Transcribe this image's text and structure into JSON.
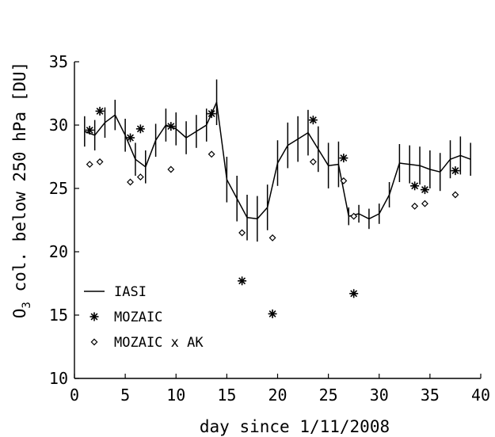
{
  "chart_data": {
    "type": "line",
    "xlabel": "day since 1/11/2008",
    "ylabel": "O3 col. below 250 hPa [DU]",
    "ylabel_parts": {
      "symbol": "O",
      "subscript": "3",
      "rest": " col. below 250 hPa [DU]"
    },
    "xlim": [
      0,
      40
    ],
    "ylim": [
      10,
      35
    ],
    "xticks": [
      "0",
      "5",
      "10",
      "15",
      "20",
      "25",
      "30",
      "35",
      "40"
    ],
    "yticks": [
      "10",
      "15",
      "20",
      "25",
      "30",
      "35"
    ],
    "grid": false,
    "legend_position": "lower-left",
    "series": [
      {
        "name": "IASI",
        "style": "line-with-errorbars",
        "color": "#000000",
        "x": [
          1,
          2,
          3,
          4,
          5,
          6,
          7,
          8,
          9,
          10,
          11,
          12,
          13,
          14,
          15,
          16,
          17,
          18,
          19,
          20,
          21,
          22,
          23,
          24,
          25,
          26,
          27,
          28,
          29,
          30,
          31,
          32,
          33,
          34,
          35,
          36,
          37,
          38,
          39
        ],
        "y": [
          29.5,
          29.2,
          30.2,
          30.8,
          29.2,
          27.3,
          26.7,
          28.8,
          30.0,
          29.7,
          29.0,
          29.5,
          30.0,
          31.8,
          25.7,
          24.2,
          22.7,
          22.6,
          23.5,
          27.0,
          28.4,
          28.9,
          29.4,
          28.1,
          26.8,
          26.9,
          22.8,
          23.0,
          22.6,
          23.0,
          24.5,
          27.0,
          26.9,
          26.8,
          26.5,
          26.3,
          27.3,
          27.6,
          27.3
        ],
        "error": [
          1.2,
          1.2,
          1.2,
          1.2,
          1.3,
          1.3,
          1.3,
          1.3,
          1.3,
          1.3,
          1.3,
          1.3,
          1.3,
          1.8,
          1.8,
          1.8,
          1.8,
          1.8,
          1.8,
          1.8,
          1.8,
          1.8,
          1.8,
          1.8,
          1.8,
          1.8,
          0.7,
          0.7,
          0.8,
          0.8,
          1.0,
          1.5,
          1.5,
          1.5,
          1.5,
          1.5,
          1.5,
          1.5,
          1.3
        ]
      },
      {
        "name": "MOZAIC",
        "style": "asterisk",
        "color": "#000000",
        "x": [
          1.5,
          2.5,
          5.5,
          6.5,
          9.5,
          13.5,
          16.5,
          19.5,
          23.5,
          26.5,
          27.5,
          33.5,
          34.5,
          37.5
        ],
        "y": [
          29.6,
          31.1,
          29.0,
          29.7,
          29.9,
          30.9,
          17.7,
          15.1,
          30.4,
          27.4,
          16.7,
          25.2,
          24.9,
          26.4
        ]
      },
      {
        "name": "MOZAIC x AK",
        "style": "diamond",
        "color": "#000000",
        "x": [
          1.5,
          2.5,
          5.5,
          6.5,
          9.5,
          13.5,
          16.5,
          19.5,
          23.5,
          26.5,
          27.5,
          33.5,
          34.5,
          37.5
        ],
        "y": [
          26.9,
          27.1,
          25.5,
          25.9,
          26.5,
          27.7,
          21.5,
          21.1,
          27.1,
          25.6,
          22.8,
          23.6,
          23.8,
          24.5
        ]
      }
    ]
  }
}
